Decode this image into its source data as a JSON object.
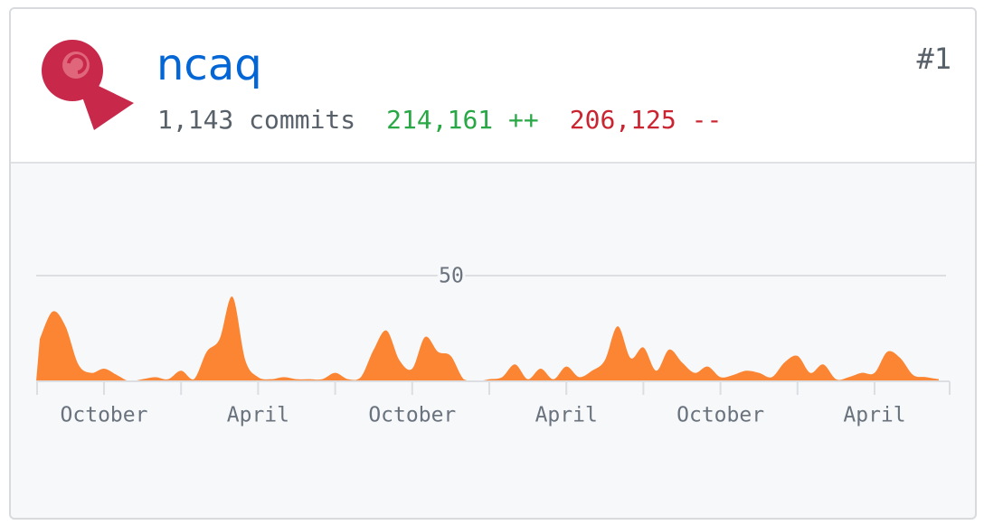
{
  "header": {
    "username": "ncaq",
    "rank": "#1",
    "commits": "1,143 commits",
    "additions": "214,161 ++",
    "deletions": "206,125 --"
  },
  "chart_data": {
    "type": "area",
    "categories": [
      null,
      null,
      null,
      null,
      null,
      "October",
      null,
      null,
      null,
      null,
      null,
      null,
      null,
      null,
      null,
      null,
      null,
      "April",
      null,
      null,
      null,
      null,
      null,
      null,
      null,
      null,
      null,
      null,
      null,
      "October",
      null,
      null,
      null,
      null,
      null,
      null,
      null,
      null,
      null,
      null,
      null,
      "April",
      null,
      null,
      null,
      null,
      null,
      null,
      null,
      null,
      null,
      null,
      null,
      "October",
      null,
      null,
      null,
      null,
      null,
      null,
      null,
      null,
      null,
      null,
      null,
      "April",
      null,
      null,
      null,
      null,
      null
    ],
    "values": [
      20,
      33,
      26,
      8,
      4,
      6,
      3,
      0,
      1,
      2,
      1,
      5,
      1,
      14,
      20,
      40,
      10,
      2,
      1,
      2,
      1,
      1,
      1,
      4,
      1,
      2,
      15,
      24,
      10,
      6,
      21,
      14,
      12,
      1,
      0,
      1,
      2,
      8,
      1,
      6,
      1,
      7,
      2,
      5,
      10,
      26,
      11,
      16,
      5,
      15,
      9,
      4,
      7,
      2,
      3,
      5,
      4,
      2,
      9,
      12,
      4,
      8,
      1,
      2,
      4,
      4,
      14,
      11,
      3,
      2,
      1
    ],
    "color": "#fb8532",
    "ylim": [
      0,
      50
    ],
    "yticks": [
      50
    ],
    "grid": true
  }
}
